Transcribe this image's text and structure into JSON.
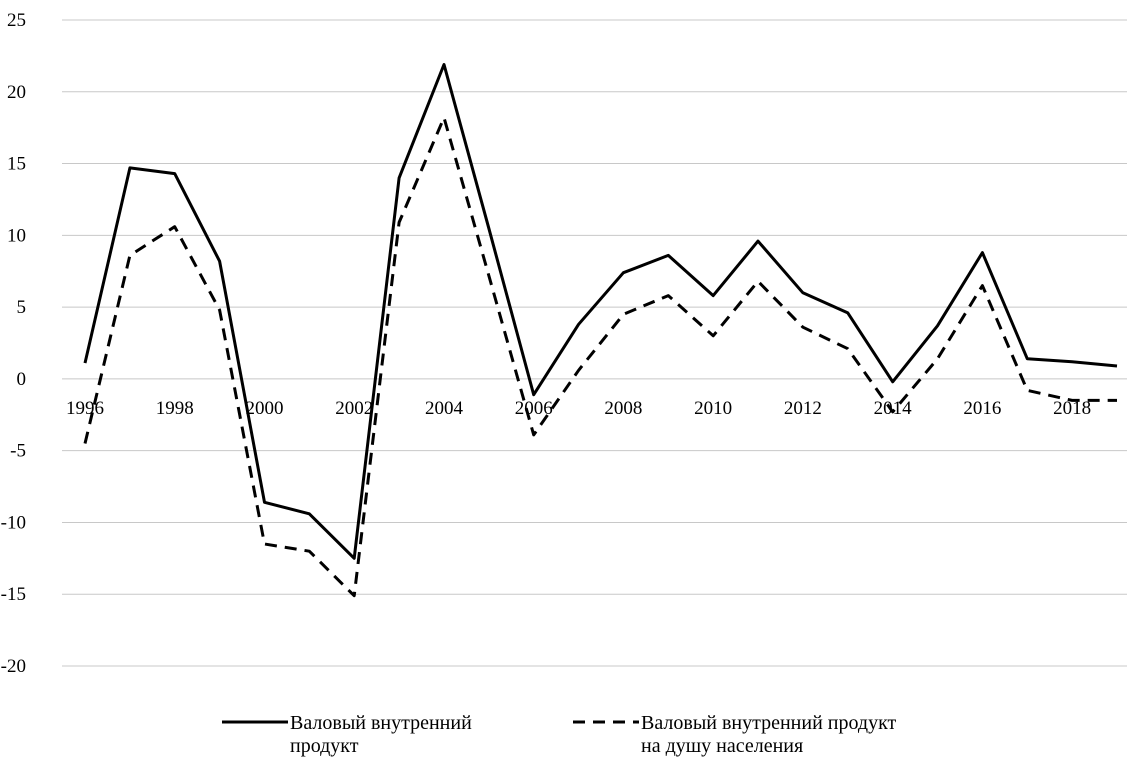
{
  "chart_data": {
    "type": "line",
    "title": "",
    "xlabel": "",
    "ylabel": "",
    "x": [
      1996,
      1997,
      1998,
      1999,
      2000,
      2001,
      2002,
      2003,
      2004,
      2005,
      2006,
      2007,
      2008,
      2009,
      2010,
      2011,
      2012,
      2013,
      2014,
      2015,
      2016,
      2017,
      2018,
      2019
    ],
    "x_tick_labels": [
      "1996",
      "1998",
      "2000",
      "2002",
      "2004",
      "2006",
      "2008",
      "2010",
      "2012",
      "2014",
      "2016",
      "2018"
    ],
    "y_tick_labels": [
      "25",
      "20",
      "15",
      "10",
      "5",
      "0",
      "-5",
      "-10",
      "-15",
      "-20"
    ],
    "ylim": [
      -20,
      25
    ],
    "grid": true,
    "legend_position": "bottom",
    "colors": {
      "series": "#000000",
      "grid": "#c8c8c8"
    },
    "series": [
      {
        "name": "Валовый внутренний продукт",
        "style": "solid",
        "values": [
          1.1,
          14.7,
          14.3,
          8.2,
          -8.6,
          -9.4,
          -12.5,
          14.0,
          21.9,
          10.5,
          -1.1,
          3.8,
          7.4,
          8.6,
          5.8,
          9.6,
          6.0,
          4.6,
          -0.2,
          3.7,
          8.8,
          1.4,
          1.2,
          0.9
        ]
      },
      {
        "name": "Валовый внутренний продукт на душу населения",
        "style": "dashed",
        "values": [
          -4.5,
          8.6,
          10.6,
          4.8,
          -11.5,
          -12.0,
          -15.1,
          10.9,
          18.2,
          7.2,
          -3.9,
          0.6,
          4.5,
          5.8,
          3.0,
          6.8,
          3.6,
          2.1,
          -2.3,
          1.4,
          6.5,
          -0.8,
          -1.5,
          -1.5
        ]
      }
    ]
  },
  "legend": {
    "items": [
      {
        "label": "Валовый внутренний\nпродукт"
      },
      {
        "label": "Валовый внутренний продукт\nна душу населения"
      }
    ]
  }
}
